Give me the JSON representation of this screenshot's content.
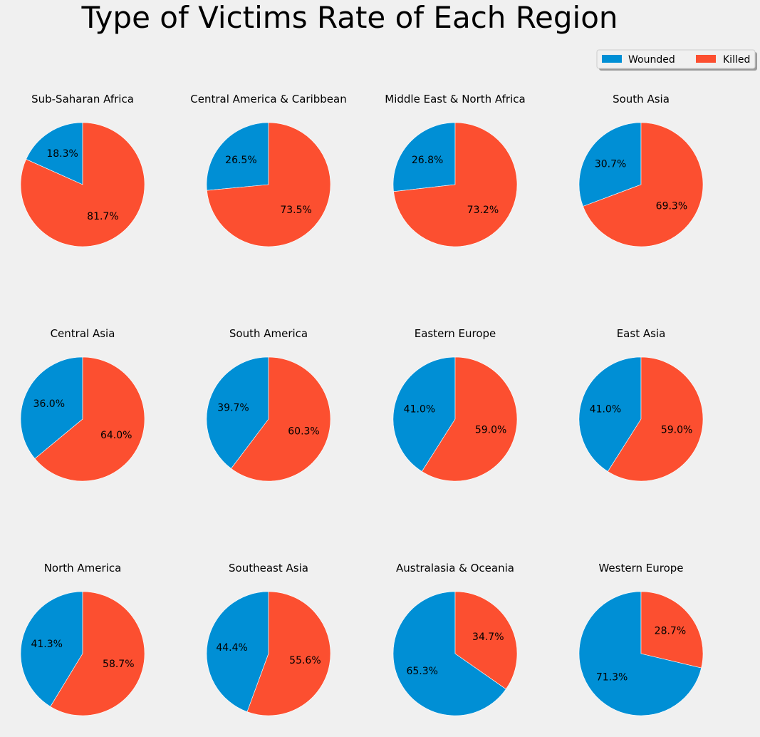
{
  "chart_data": {
    "type": "pie",
    "title": "Type of Victims Rate of Each Region",
    "legend": {
      "placement": "top-right",
      "entries": [
        {
          "label": "Wounded",
          "color": "#008fd5"
        },
        {
          "label": "Killed",
          "color": "#fc4f30"
        }
      ]
    },
    "categories": [
      "Wounded",
      "Killed"
    ],
    "colors": [
      "#008fd5",
      "#fc4f30"
    ],
    "pies": [
      {
        "title": "Sub-Saharan Africa",
        "values": [
          18.3,
          81.7
        ],
        "labels": [
          "18.3%",
          "81.7%"
        ]
      },
      {
        "title": "Central America & Caribbean",
        "values": [
          26.5,
          73.5
        ],
        "labels": [
          "26.5%",
          "73.5%"
        ]
      },
      {
        "title": "Middle East & North Africa",
        "values": [
          26.8,
          73.2
        ],
        "labels": [
          "26.8%",
          "73.2%"
        ]
      },
      {
        "title": "South Asia",
        "values": [
          30.7,
          69.3
        ],
        "labels": [
          "30.7%",
          "69.3%"
        ]
      },
      {
        "title": "Central Asia",
        "values": [
          36.0,
          64.0
        ],
        "labels": [
          "36.0%",
          "64.0%"
        ]
      },
      {
        "title": "South America",
        "values": [
          39.7,
          60.3
        ],
        "labels": [
          "39.7%",
          "60.3%"
        ]
      },
      {
        "title": "Eastern Europe",
        "values": [
          41.0,
          59.0
        ],
        "labels": [
          "41.0%",
          "59.0%"
        ]
      },
      {
        "title": "East Asia",
        "values": [
          41.0,
          59.0
        ],
        "labels": [
          "41.0%",
          "59.0%"
        ]
      },
      {
        "title": "North America",
        "values": [
          41.3,
          58.7
        ],
        "labels": [
          "41.3%",
          "58.7%"
        ]
      },
      {
        "title": "Southeast Asia",
        "values": [
          44.4,
          55.6
        ],
        "labels": [
          "44.4%",
          "55.6%"
        ]
      },
      {
        "title": "Australasia & Oceania",
        "values": [
          65.3,
          34.7
        ],
        "labels": [
          "65.3%",
          "34.7%"
        ]
      },
      {
        "title": "Western Europe",
        "values": [
          71.3,
          28.7
        ],
        "labels": [
          "71.3%",
          "28.7%"
        ]
      }
    ]
  }
}
